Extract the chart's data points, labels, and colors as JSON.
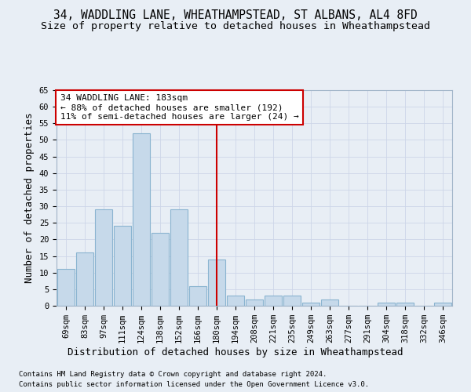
{
  "title_line1": "34, WADDLING LANE, WHEATHAMPSTEAD, ST ALBANS, AL4 8FD",
  "title_line2": "Size of property relative to detached houses in Wheathampstead",
  "xlabel": "Distribution of detached houses by size in Wheathampstead",
  "ylabel": "Number of detached properties",
  "footnote1": "Contains HM Land Registry data © Crown copyright and database right 2024.",
  "footnote2": "Contains public sector information licensed under the Open Government Licence v3.0.",
  "categories": [
    "69sqm",
    "83sqm",
    "97sqm",
    "111sqm",
    "124sqm",
    "138sqm",
    "152sqm",
    "166sqm",
    "180sqm",
    "194sqm",
    "208sqm",
    "221sqm",
    "235sqm",
    "249sqm",
    "263sqm",
    "277sqm",
    "291sqm",
    "304sqm",
    "318sqm",
    "332sqm",
    "346sqm"
  ],
  "values": [
    11,
    16,
    29,
    24,
    52,
    22,
    29,
    6,
    14,
    3,
    2,
    3,
    3,
    1,
    2,
    0,
    0,
    1,
    1,
    0,
    1
  ],
  "bar_color": "#c6d9ea",
  "bar_edge_color": "#8ab4d0",
  "vline_x_index": 8,
  "vline_color": "#cc0000",
  "annotation_text": "34 WADDLING LANE: 183sqm\n← 88% of detached houses are smaller (192)\n11% of semi-detached houses are larger (24) →",
  "annotation_box_color": "#ffffff",
  "annotation_box_edge": "#cc0000",
  "ylim": [
    0,
    65
  ],
  "yticks": [
    0,
    5,
    10,
    15,
    20,
    25,
    30,
    35,
    40,
    45,
    50,
    55,
    60,
    65
  ],
  "grid_color": "#cdd6e8",
  "bg_color": "#e8eef5",
  "title_fontsize": 10.5,
  "subtitle_fontsize": 9.5,
  "ylabel_fontsize": 9,
  "xlabel_fontsize": 9,
  "tick_fontsize": 7.5,
  "annotation_fontsize": 8,
  "footnote_fontsize": 6.5
}
